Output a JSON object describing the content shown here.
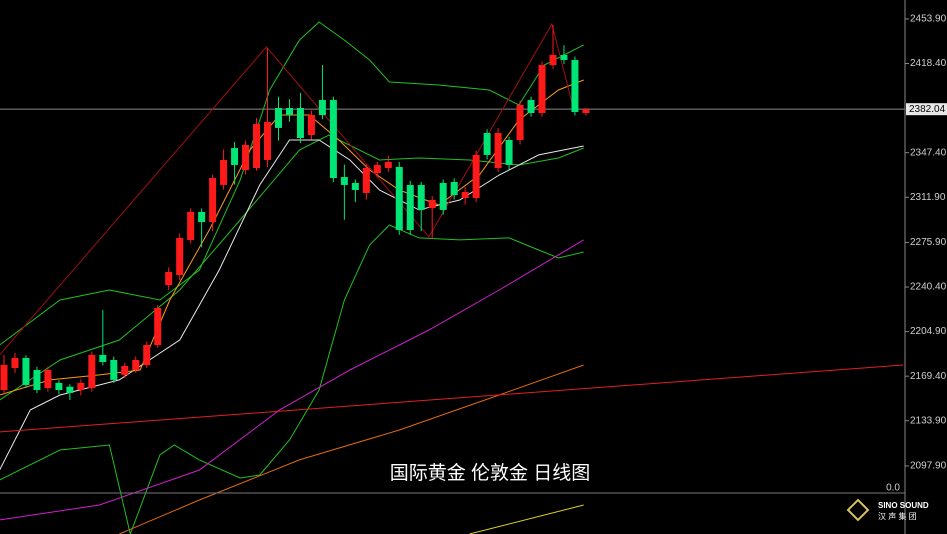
{
  "chart_data": {
    "type": "candlestick",
    "title": "国际黄金 伦敦金 日线图",
    "up_color": "#ff1a1a",
    "down_color": "#00e676",
    "xlim": [
      -0.364,
      82.06
    ],
    "ylim": [
      2043.7,
      2469.0
    ],
    "yticks": [
      {
        "value": 2453.9,
        "label": "2453.90"
      },
      {
        "value": 2418.4,
        "label": "2418.40"
      },
      {
        "value": 2347.4,
        "label": "2347.40"
      },
      {
        "value": 2311.9,
        "label": "2311.90"
      },
      {
        "value": 2275.9,
        "label": "2275.90"
      },
      {
        "value": 2240.4,
        "label": "2240.40"
      },
      {
        "value": 2204.9,
        "label": "2204.90"
      },
      {
        "value": 2169.4,
        "label": "2169.40"
      },
      {
        "value": 2133.9,
        "label": "2133.90"
      },
      {
        "value": 2097.9,
        "label": "2097.90"
      }
    ],
    "price_line": {
      "value": 2382.04,
      "label": "2382.04"
    },
    "candles": {
      "open": [
        2158.4,
        2175.9,
        2183.9,
        2174.3,
        2160.0,
        2164.0,
        2161.0,
        2158.4,
        2160.0,
        2186.3,
        2182.3,
        2170.4,
        2174.3,
        2178.3,
        2194.2,
        2242.0,
        2250.0,
        2277.9,
        2300.2,
        2292.2,
        2321.7,
        2351.1,
        2333.6,
        2335.2,
        2341.6,
        2383.0,
        2383.0,
        2383.0,
        2361.5,
        2389.4,
        2389.4,
        2328.0,
        2323.3,
        2315.3,
        2331.2,
        2335.2,
        2336.0,
        2321.7,
        2321.7,
        2303.3,
        2323.3,
        2324.1,
        2311.3,
        2311.3,
        2363.1,
        2335.2,
        2357.5,
        2357.5,
        2389.4,
        2379.0,
        2417.2,
        2425.2,
        2421.2,
        2379.0
      ],
      "high": [
        2186.3,
        2188,
        2186,
        2177,
        2177,
        2166,
        2163,
        2167,
        2189,
        2222.1,
        2185,
        2180,
        2185,
        2197,
        2226,
        2256,
        2283,
        2303,
        2303,
        2330,
        2350,
        2356,
        2357,
        2375,
        2430.8,
        2392,
        2390,
        2395,
        2381,
        2417.2,
        2392,
        2338,
        2326,
        2338,
        2340,
        2345,
        2340,
        2325,
        2324,
        2313,
        2326,
        2327,
        2320,
        2349,
        2366,
        2367,
        2360,
        2389,
        2392,
        2420,
        2449.1,
        2433,
        2424,
        2383
      ],
      "low": [
        2154.4,
        2172,
        2160,
        2156,
        2157,
        2155,
        2150.4,
        2154,
        2157,
        2178,
        2164,
        2168,
        2172,
        2176,
        2192,
        2238,
        2246,
        2275,
        2272,
        2285,
        2318,
        2322,
        2330,
        2333,
        2336,
        2357,
        2372,
        2355,
        2358,
        2374,
        2324,
        2294,
        2308,
        2310,
        2328,
        2332,
        2282,
        2282,
        2285,
        2279,
        2298,
        2310,
        2306,
        2308,
        2342,
        2332,
        2334,
        2354,
        2376,
        2376,
        2414,
        2418,
        2377,
        2377
      ],
      "close": [
        2178.3,
        2183.9,
        2162.4,
        2158.4,
        2174.3,
        2158.4,
        2156.0,
        2164.0,
        2186.3,
        2180.7,
        2166.4,
        2177.5,
        2182.3,
        2194.2,
        2223.7,
        2252.4,
        2279.5,
        2300.2,
        2292.2,
        2327.2,
        2341.6,
        2337.6,
        2353.5,
        2370.2,
        2371.8,
        2367.1,
        2377.4,
        2359.1,
        2377.4,
        2377.4,
        2327.2,
        2321.7,
        2317.7,
        2335.2,
        2337.6,
        2340.0,
        2285.8,
        2285.8,
        2301.8,
        2309.7,
        2301.8,
        2313.7,
        2316.1,
        2345.6,
        2345.6,
        2363.1,
        2337.6,
        2385.4,
        2379.0,
        2417.2,
        2425.2,
        2421.2,
        2379.8,
        2382.04
      ]
    },
    "lines": [
      {
        "color": "#22c022",
        "x": [
          -0.4,
          5.1,
          9.6,
          14.2,
          17.8,
          21.5,
          24.2,
          26.9,
          28.7,
          31.0,
          33.3,
          35.1,
          39.6,
          44.2,
          46.9,
          49.2,
          52.8
        ],
        "values": [
          2194.2,
          2230.1,
          2238.0,
          2230.1,
          2254.0,
          2325.6,
          2397.3,
          2437.1,
          2451.5,
          2437.1,
          2421.2,
          2403.7,
          2401.3,
          2397.3,
          2385.4,
          2417.2,
          2433.2
        ]
      },
      {
        "color": "#22c022",
        "x": [
          -0.4,
          5.1,
          10.5,
          16.0,
          21.5,
          26.9,
          29.6,
          34.2,
          37.8,
          42.4,
          46.9,
          50.5,
          52.8
        ],
        "values": [
          2150.4,
          2182.3,
          2198.2,
          2238.0,
          2293.8,
          2349.5,
          2361.5,
          2341.6,
          2343.2,
          2341.6,
          2337.6,
          2343.2,
          2351.1
        ]
      },
      {
        "color": "#22c022",
        "x": [
          -0.4,
          5.1,
          9.6,
          11.5,
          14.2,
          15.5,
          17.8,
          21.5,
          23.3,
          26.0,
          28.7,
          31.0,
          33.3,
          35.1,
          37.8,
          41.5,
          46.0,
          48.7,
          50.5,
          52.8
        ],
        "values": [
          2086.7,
          2110.6,
          2114.6,
          2043.7,
          2106.6,
          2114.6,
          2102.7,
          2088.3,
          2090.7,
          2118.6,
          2158.4,
          2230.1,
          2273.9,
          2289.8,
          2279.5,
          2277.9,
          2279.5,
          2269.9,
          2263.5,
          2268.3
        ]
      },
      {
        "color": "#e8e8e8",
        "x": [
          -0.4,
          2.4,
          5.1,
          10.5,
          16.0,
          19.6,
          23.3,
          26.0,
          28.7,
          31.5,
          34.2,
          37.8,
          41.5,
          45.1,
          48.7,
          52.8
        ],
        "values": [
          2094.7,
          2142.5,
          2154.4,
          2166.4,
          2198.2,
          2254.0,
          2321.7,
          2357.5,
          2357.5,
          2341.6,
          2317.7,
          2301.8,
          2309.7,
          2329.6,
          2345.6,
          2352.7
        ]
      },
      {
        "color": "#ff9a1a",
        "x": [
          -0.4,
          4.2,
          8.7,
          12.4,
          15.1,
          18.7,
          22.4,
          25.1,
          27.8,
          30.5,
          33.3,
          36.0,
          39.6,
          43.3,
          46.9,
          50.5,
          52.8
        ],
        "values": [
          2154.4,
          2166.4,
          2170.4,
          2174.3,
          2230.1,
          2285.8,
          2349.5,
          2377.4,
          2377.4,
          2357.5,
          2333.6,
          2317.7,
          2305.7,
          2329.6,
          2373.4,
          2397.3,
          2405.3
        ]
      },
      {
        "color": "#d020d0",
        "x": [
          -0.4,
          8.7,
          17.8,
          25.1,
          31.5,
          38.7,
          45.1,
          52.8
        ],
        "values": [
          2054.9,
          2066.8,
          2094.7,
          2142.5,
          2174.3,
          2206.2,
          2238.0,
          2277.9
        ]
      },
      {
        "color": "#e06a10",
        "x": [
          10.5,
          17.8,
          26.9,
          36.0,
          45.1,
          52.8
        ],
        "values": [
          2043.7,
          2070.8,
          2102.7,
          2126.5,
          2154.4,
          2178.3
        ]
      },
      {
        "color": "#e02020",
        "x": [
          -0.4,
          81.9
        ],
        "values": [
          2125.0,
          2178.3
        ]
      },
      {
        "color": "#a01010",
        "x": [
          -0.4,
          23.9,
          38.7,
          49.9,
          51.9
        ],
        "values": [
          2186.3,
          2431.6,
          2280.3,
          2449.9,
          2381.4
        ]
      },
      {
        "color": "#e0d020",
        "x": [
          42.4,
          52.8
        ],
        "values": [
          2043.7,
          2066.8
        ]
      }
    ],
    "sub_pane_label": "0.0",
    "logo": {
      "name": "SINO SOUND",
      "subtitle": "汉 声 集 团"
    }
  }
}
